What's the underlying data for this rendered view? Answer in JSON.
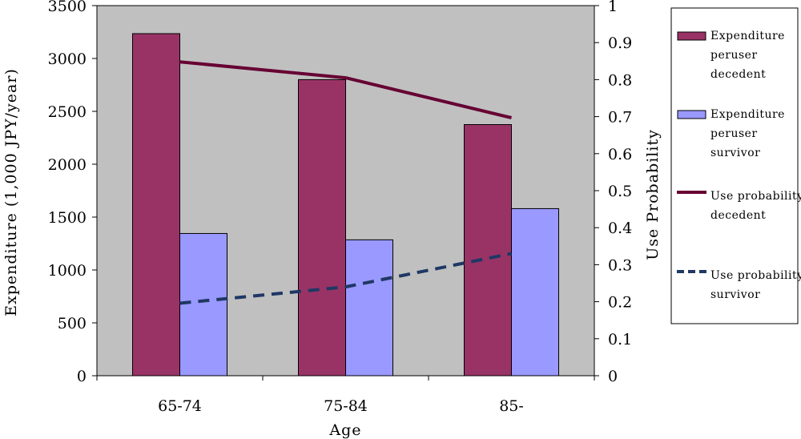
{
  "chart_data": {
    "type": "bar",
    "title": "",
    "xlabel": "Age",
    "ylabel": "Expenditure (1,000 JPY/year)",
    "y2label": "Use Probability",
    "categories": [
      "65-74",
      "75-84",
      "85-"
    ],
    "ylim": [
      0,
      3500
    ],
    "yticks": [
      0,
      500,
      1000,
      1500,
      2000,
      2500,
      3000,
      3500
    ],
    "y2lim": [
      0,
      1
    ],
    "y2ticks": [
      "0",
      "0.1",
      "0.2",
      "0.3",
      "0.4",
      "0.5",
      "0.6",
      "0.7",
      "0.8",
      "0.9",
      "1"
    ],
    "grid": false,
    "legend_position": "right",
    "bar_series": [
      {
        "name": "Expenditure peruser decedent",
        "legend_lines": [
          "Expenditure",
          "peruser",
          "decedent"
        ],
        "values": [
          3235,
          2800,
          2375
        ],
        "color": "#993366"
      },
      {
        "name": "Expenditure peruser survivor",
        "legend_lines": [
          "Expenditure",
          "peruser",
          "survivor"
        ],
        "values": [
          1345,
          1285,
          1580
        ],
        "color": "#9999ff"
      }
    ],
    "line_series": [
      {
        "name": "Use probability decedent",
        "legend_lines": [
          "Use probability",
          "decedent"
        ],
        "axis": "right",
        "values": [
          0.848,
          0.805,
          0.697
        ],
        "color": "#660033",
        "dashed": false
      },
      {
        "name": "Use probability survivor",
        "legend_lines": [
          "Use probability",
          "survivor"
        ],
        "axis": "right",
        "values": [
          0.196,
          0.24,
          0.33
        ],
        "color": "#1f3864",
        "dashed": true
      }
    ],
    "colors": {
      "plot_background": "#c0c0c0",
      "axis": "#000000"
    }
  }
}
